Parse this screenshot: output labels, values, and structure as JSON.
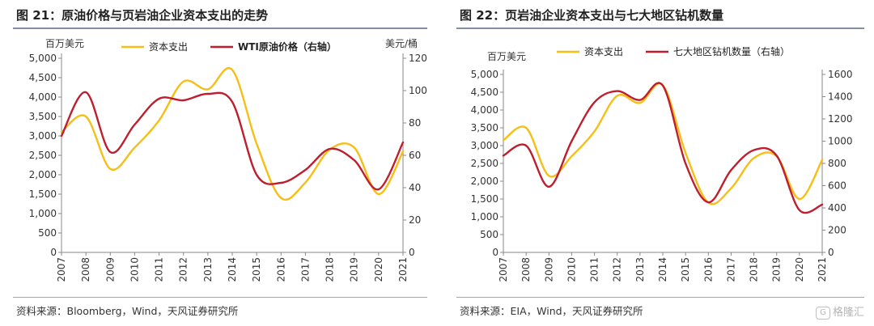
{
  "chart_data": [
    {
      "type": "line",
      "title": "图 21：原油价格与页岩油企业资本支出的走势",
      "source": "资料来源：Bloomberg，Wind，天风证券研究所",
      "left_unit": "百万美元",
      "right_unit": "美元/桶",
      "categories": [
        "2007",
        "2008",
        "2009",
        "2010",
        "2011",
        "2012",
        "2013",
        "2014",
        "2015",
        "2016",
        "2017",
        "2018",
        "2019",
        "2020",
        "2021"
      ],
      "ylim": [
        0,
        5000
      ],
      "yticks": [
        "0",
        "500",
        "1,000",
        "1,500",
        "2,000",
        "2,500",
        "3,000",
        "3,500",
        "4,000",
        "4,500",
        "5,000"
      ],
      "y2lim": [
        0,
        120
      ],
      "y2ticks": [
        "0",
        "20",
        "40",
        "60",
        "80",
        "100",
        "120"
      ],
      "legend_position": "top",
      "series": [
        {
          "name": "资本支出",
          "axis": "left",
          "color": "#F7BE16",
          "values": [
            3100,
            3500,
            2150,
            2700,
            3400,
            4400,
            4200,
            4700,
            2800,
            1400,
            1800,
            2650,
            2700,
            1500,
            2600
          ]
        },
        {
          "name": "WTI原油价格（右轴）",
          "axis": "right",
          "color": "#BE1E2D",
          "values": [
            72,
            99,
            62,
            79,
            95,
            94,
            98,
            93,
            48,
            43,
            51,
            64,
            57,
            39,
            68
          ]
        }
      ]
    },
    {
      "type": "line",
      "title": "图 22：页岩油企业资本支出与七大地区钻机数量",
      "source": "资料来源：EIA，Wind，天风证券研究所",
      "left_unit": "百万美元",
      "right_unit": "",
      "categories": [
        "2007",
        "2008",
        "2009",
        "2010",
        "2011",
        "2012",
        "2013",
        "2014",
        "2015",
        "2016",
        "2017",
        "2018",
        "2019",
        "2020",
        "2021"
      ],
      "ylim": [
        0,
        5000
      ],
      "yticks": [
        "0",
        "500",
        "1,000",
        "1,500",
        "2,000",
        "2,500",
        "3,000",
        "3,500",
        "4,000",
        "4,500",
        "5,000"
      ],
      "y2lim": [
        0,
        1600
      ],
      "y2ticks": [
        "0",
        "200",
        "400",
        "600",
        "800",
        "1000",
        "1200",
        "1400",
        "1600"
      ],
      "legend_position": "top",
      "series": [
        {
          "name": "资本支出",
          "axis": "left",
          "color": "#F7BE16",
          "values": [
            3150,
            3500,
            2150,
            2700,
            3400,
            4400,
            4200,
            4700,
            2800,
            1400,
            1800,
            2650,
            2700,
            1500,
            2600
          ]
        },
        {
          "name": "七大地区钻机数量（右轴）",
          "axis": "right",
          "color": "#BE1E2D",
          "values": [
            870,
            960,
            590,
            1000,
            1350,
            1450,
            1370,
            1500,
            800,
            450,
            740,
            920,
            870,
            380,
            430
          ]
        }
      ]
    }
  ],
  "watermark": {
    "text": "格隆汇",
    "icon": "G"
  }
}
